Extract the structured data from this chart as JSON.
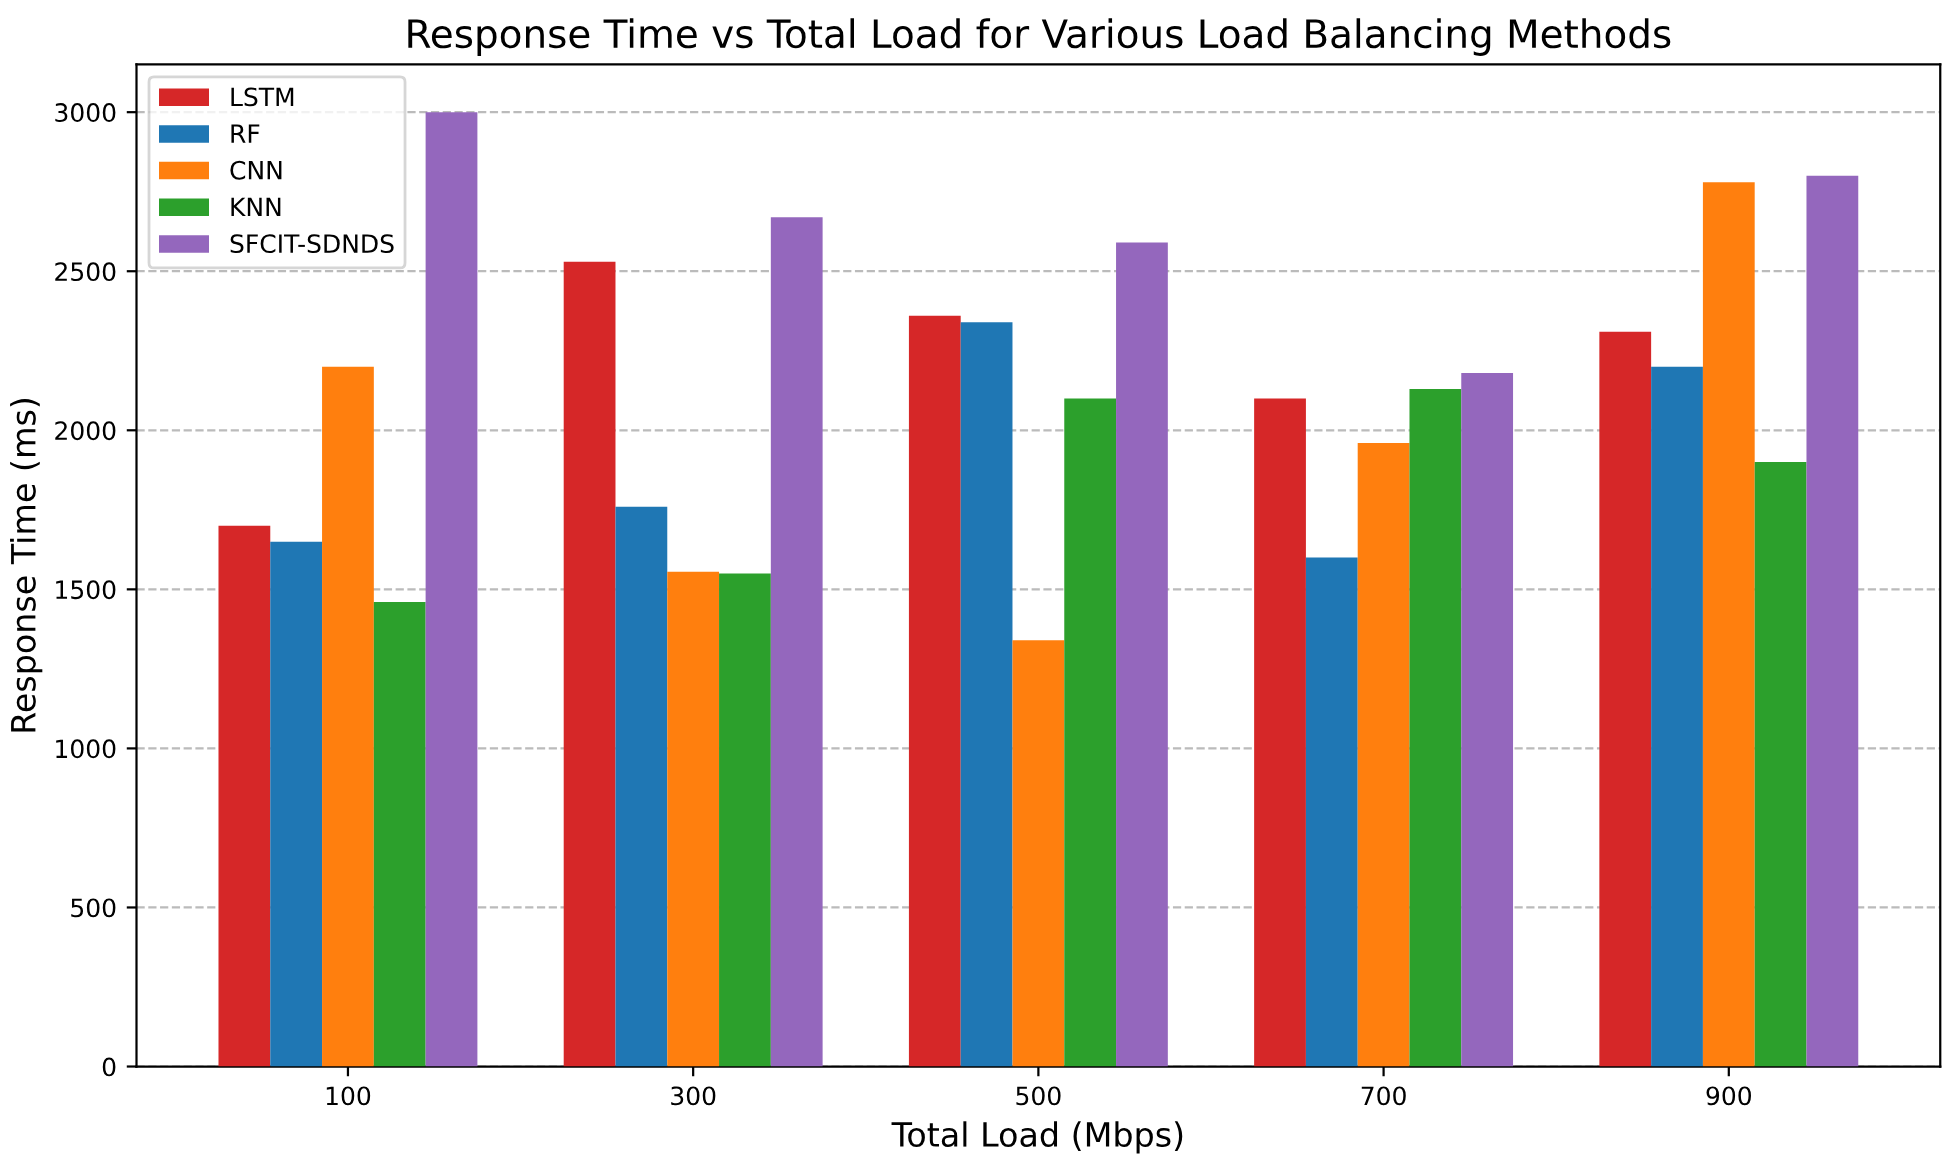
{
  "chart_data": {
    "type": "bar",
    "title": "Response Time vs Total Load for Various Load Balancing Methods",
    "xlabel": "Total Load (Mbps)",
    "ylabel": "Response Time (ms)",
    "categories": [
      "100",
      "300",
      "500",
      "700",
      "900"
    ],
    "series": [
      {
        "name": "LSTM",
        "color": "#d62728",
        "values": [
          1700,
          2530,
          2360,
          2100,
          2310
        ]
      },
      {
        "name": "RF",
        "color": "#1f77b4",
        "values": [
          1650,
          1760,
          2340,
          1600,
          2200
        ]
      },
      {
        "name": "CNN",
        "color": "#ff7f0e",
        "values": [
          2200,
          1555,
          1340,
          1960,
          2780
        ]
      },
      {
        "name": "KNN",
        "color": "#2ca02c",
        "values": [
          1460,
          1550,
          2100,
          2130,
          1900
        ]
      },
      {
        "name": "SFCIT-SDNDS",
        "color": "#9467bd",
        "values": [
          3000,
          2670,
          2590,
          2180,
          2800
        ]
      }
    ],
    "ylim": [
      0,
      3150
    ],
    "yticks": [
      0,
      500,
      1000,
      1500,
      2000,
      2500,
      3000
    ],
    "grid": "y",
    "legend": "top left"
  }
}
